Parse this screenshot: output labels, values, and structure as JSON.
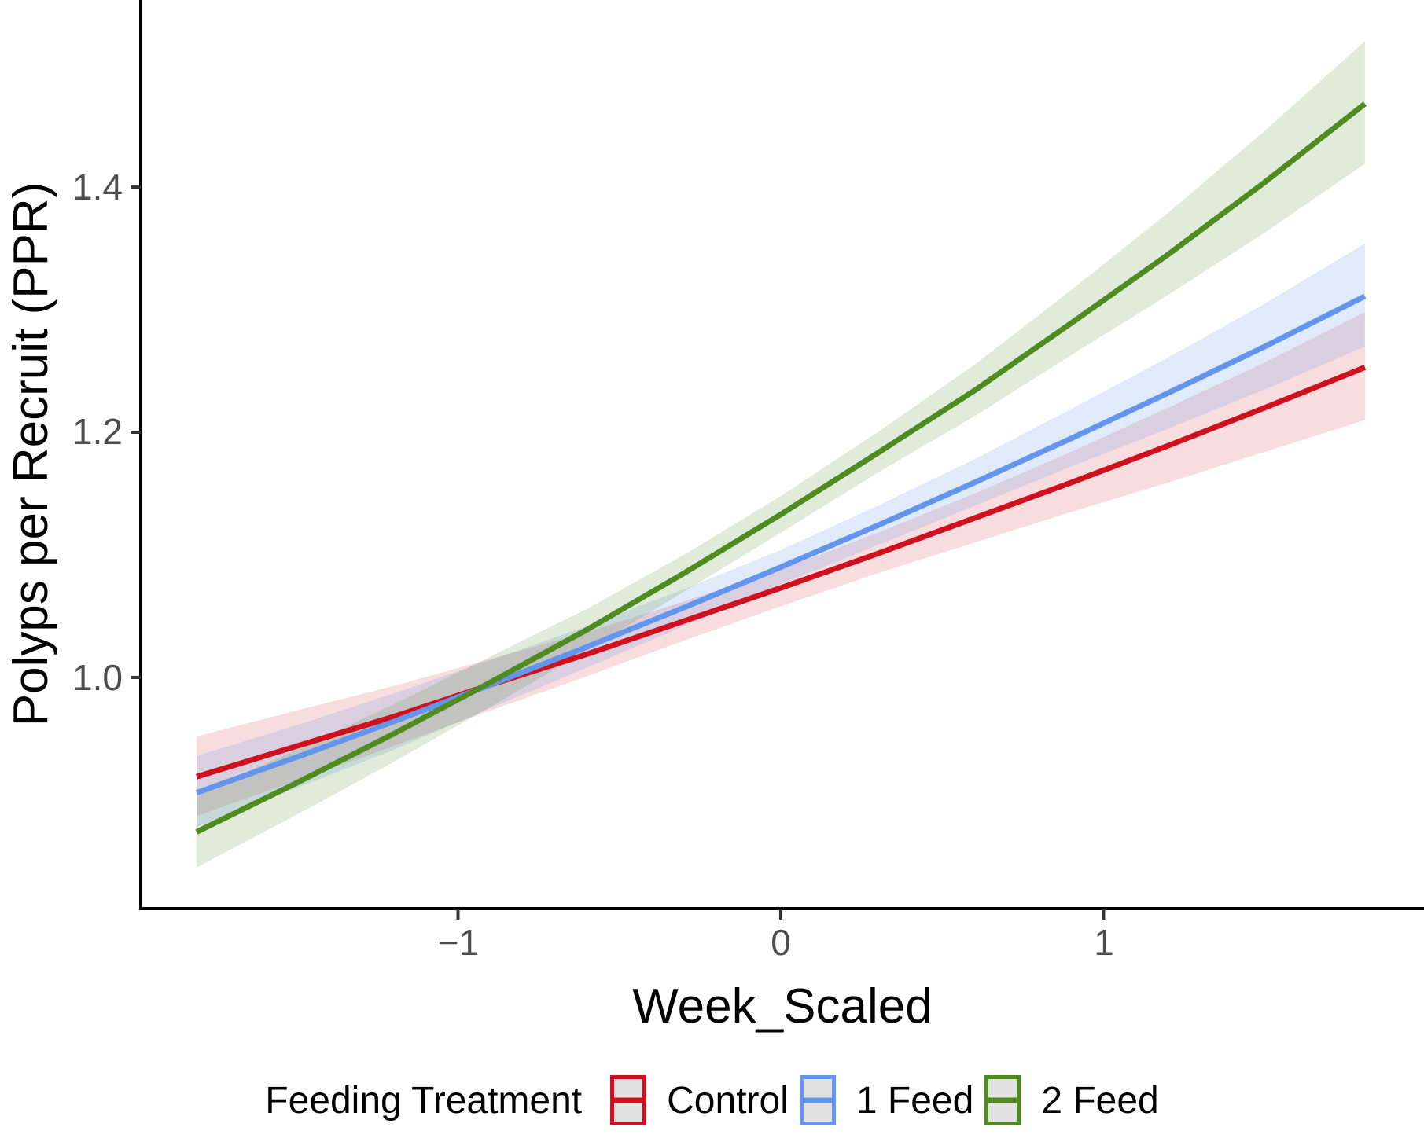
{
  "figure": {
    "background": "#ffffff"
  },
  "axes": {
    "x_tick_labels": [
      "−1",
      "0",
      "1"
    ],
    "y_tick_labels": [
      "1.4",
      "1.2",
      "1.0"
    ],
    "tick_color": "#333333",
    "tick_label_color": "#4d4d4d",
    "axis_line_color": "#000000"
  },
  "legend": {
    "title": "Feeding Treatment",
    "items": [
      {
        "label": "Control",
        "color": "#cf111f",
        "key_fill": "#e2e2e2"
      },
      {
        "label": "1 Feed",
        "color": "#6495ed",
        "key_fill": "#e2e2e2"
      },
      {
        "label": "2 Feed",
        "color": "#4f8b20",
        "key_fill": "#e2e2e2"
      }
    ]
  },
  "chart_data": {
    "type": "line",
    "title": "",
    "xlabel": "Week_Scaled",
    "ylabel": "Polyps per Recruit (PPR)",
    "xlim": [
      -1.983,
      1.993
    ],
    "ylim": [
      0.8115,
      1.5526
    ],
    "x_ticks": [
      -1,
      0,
      1
    ],
    "y_ticks": [
      1.0,
      1.2,
      1.4
    ],
    "grid": false,
    "legend_title": "Feeding Treatment",
    "legend_position": "bottom",
    "x": [
      -1.81,
      -1.5,
      -1.2,
      -0.9,
      -0.6,
      -0.3,
      0.0,
      0.3,
      0.6,
      0.9,
      1.2,
      1.5,
      1.81
    ],
    "series": [
      {
        "name": "Control",
        "color": "#cf111f",
        "ribbon_opacity": 0.14,
        "values": [
          0.919,
          0.944,
          0.968,
          0.994,
          1.019,
          1.046,
          1.073,
          1.101,
          1.13,
          1.159,
          1.189,
          1.22,
          1.253
        ],
        "lower": [
          0.887,
          0.916,
          0.944,
          0.973,
          1.001,
          1.03,
          1.058,
          1.085,
          1.11,
          1.135,
          1.159,
          1.184,
          1.21
        ],
        "upper": [
          0.952,
          0.973,
          0.993,
          1.015,
          1.037,
          1.062,
          1.088,
          1.118,
          1.15,
          1.184,
          1.22,
          1.257,
          1.298
        ]
      },
      {
        "name": "1 Feed",
        "color": "#6495ed",
        "ribbon_opacity": 0.2,
        "values": [
          0.906,
          0.935,
          0.964,
          0.994,
          1.025,
          1.057,
          1.09,
          1.124,
          1.159,
          1.195,
          1.232,
          1.27,
          1.311
        ],
        "lower": [
          0.878,
          0.91,
          0.941,
          0.975,
          1.008,
          1.042,
          1.076,
          1.108,
          1.14,
          1.172,
          1.203,
          1.235,
          1.27
        ],
        "upper": [
          0.936,
          0.961,
          0.987,
          1.014,
          1.042,
          1.072,
          1.104,
          1.14,
          1.178,
          1.219,
          1.261,
          1.305,
          1.354
        ]
      },
      {
        "name": "2 Feed",
        "color": "#4f8b20",
        "ribbon_opacity": 0.17,
        "values": [
          0.874,
          0.914,
          0.954,
          0.996,
          1.039,
          1.085,
          1.133,
          1.183,
          1.234,
          1.289,
          1.345,
          1.404,
          1.468
        ],
        "lower": [
          0.845,
          0.888,
          0.931,
          0.976,
          1.022,
          1.07,
          1.118,
          1.167,
          1.213,
          1.263,
          1.312,
          1.363,
          1.419
        ],
        "upper": [
          0.905,
          0.941,
          0.978,
          1.017,
          1.056,
          1.1,
          1.148,
          1.2,
          1.255,
          1.316,
          1.379,
          1.446,
          1.519
        ]
      }
    ]
  }
}
